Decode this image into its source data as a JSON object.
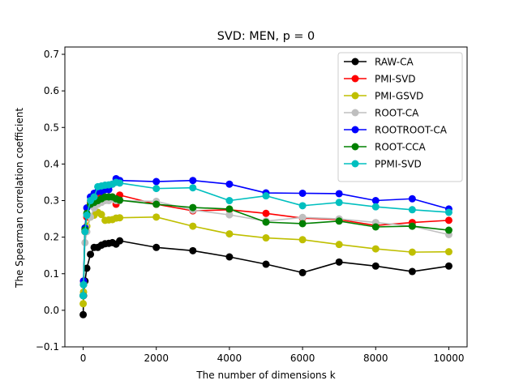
{
  "chart_data": {
    "type": "line",
    "title": "SVD: MEN, p = 0",
    "xlabel": "The number of dimensions k",
    "ylabel": "The Spearman correlation coefficient",
    "xlim": [
      -500,
      10500
    ],
    "ylim": [
      -0.1,
      0.72
    ],
    "xticks": [
      0,
      2000,
      4000,
      6000,
      8000,
      10000
    ],
    "xtick_labels": [
      "0",
      "2000",
      "4000",
      "6000",
      "8000",
      "10000"
    ],
    "yticks": [
      -0.1,
      0.0,
      0.1,
      0.2,
      0.3,
      0.4,
      0.5,
      0.6,
      0.7
    ],
    "ytick_labels": [
      "−0.1",
      "0.0",
      "0.1",
      "0.2",
      "0.3",
      "0.4",
      "0.5",
      "0.6",
      "0.7"
    ],
    "grid": false,
    "legend_position": "top-right",
    "x": [
      1,
      10,
      50,
      100,
      200,
      300,
      400,
      500,
      600,
      700,
      800,
      900,
      1000,
      2000,
      3000,
      4000,
      5000,
      6000,
      7000,
      8000,
      9000,
      10000
    ],
    "series": [
      {
        "name": "RAW-CA",
        "color": "#000000",
        "values": [
          -0.012,
          0.04,
          0.08,
          0.115,
          0.153,
          0.172,
          0.172,
          0.178,
          0.182,
          0.183,
          0.185,
          0.181,
          0.19,
          0.172,
          0.163,
          0.146,
          0.126,
          0.103,
          0.132,
          0.121,
          0.106,
          0.121
        ]
      },
      {
        "name": "PMI-SVD",
        "color": "#ff0000",
        "values": [
          0.04,
          0.08,
          0.215,
          0.255,
          0.295,
          0.3,
          0.31,
          0.31,
          0.305,
          0.31,
          0.31,
          0.29,
          0.315,
          0.29,
          0.272,
          0.275,
          0.265,
          0.252,
          0.248,
          0.232,
          0.24,
          0.246
        ]
      },
      {
        "name": "PMI-GSVD",
        "color": "#bfbf00",
        "values": [
          0.018,
          0.05,
          0.215,
          0.23,
          0.255,
          0.26,
          0.268,
          0.262,
          0.246,
          0.247,
          0.248,
          0.252,
          0.253,
          0.255,
          0.23,
          0.209,
          0.198,
          0.193,
          0.18,
          0.168,
          0.159,
          0.16
        ]
      },
      {
        "name": "ROOT-CA",
        "color": "#bfbfbf",
        "values": [
          0.04,
          0.075,
          0.185,
          0.215,
          0.255,
          0.28,
          0.29,
          0.295,
          0.3,
          0.3,
          0.305,
          0.3,
          0.3,
          0.298,
          0.274,
          0.261,
          0.244,
          0.254,
          0.25,
          0.24,
          0.23,
          0.207
        ]
      },
      {
        "name": "ROOTROOT-CA",
        "color": "#0000ff",
        "values": [
          0.04,
          0.08,
          0.225,
          0.28,
          0.31,
          0.32,
          0.325,
          0.325,
          0.33,
          0.33,
          0.345,
          0.36,
          0.355,
          0.352,
          0.355,
          0.345,
          0.321,
          0.32,
          0.319,
          0.3,
          0.305,
          0.277
        ]
      },
      {
        "name": "ROOT-CCA",
        "color": "#008000",
        "values": [
          0.04,
          0.07,
          0.22,
          0.265,
          0.29,
          0.295,
          0.3,
          0.305,
          0.31,
          0.31,
          0.31,
          0.305,
          0.301,
          0.29,
          0.281,
          0.277,
          0.241,
          0.237,
          0.244,
          0.228,
          0.23,
          0.219
        ]
      },
      {
        "name": "PPMI-SVD",
        "color": "#00bfbf",
        "values": [
          0.04,
          0.07,
          0.215,
          0.26,
          0.3,
          0.31,
          0.338,
          0.34,
          0.342,
          0.343,
          0.345,
          0.35,
          0.348,
          0.333,
          0.335,
          0.3,
          0.313,
          0.286,
          0.295,
          0.283,
          0.275,
          0.268
        ]
      }
    ]
  }
}
